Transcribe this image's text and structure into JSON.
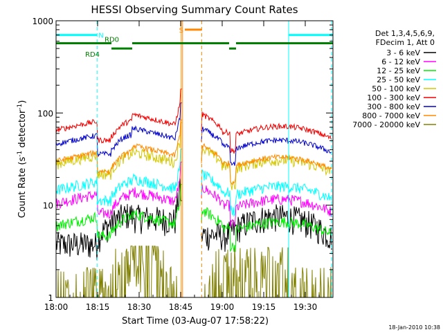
{
  "chart_data": {
    "type": "line",
    "title": "HESSI Observing Summary Count Rates",
    "xlabel": "Start Time (03-Aug-07 17:58:22)",
    "ylabel_prefix": "Count Rate (s",
    "ylabel_sup1": "-1",
    "ylabel_mid": " detector",
    "ylabel_sup2": "-1",
    "ylabel_suffix": ")",
    "y_scale": "log",
    "ylim": [
      1,
      1000
    ],
    "xlim_minutes": [
      0,
      100
    ],
    "x_ticks": [
      {
        "t": 0,
        "label": "18:00"
      },
      {
        "t": 15,
        "label": "18:15"
      },
      {
        "t": 30,
        "label": "18:30"
      },
      {
        "t": 45,
        "label": "18:45"
      },
      {
        "t": 60,
        "label": "19:00"
      },
      {
        "t": 75,
        "label": "19:15"
      },
      {
        "t": 90,
        "label": "19:30"
      }
    ],
    "y_ticks": [
      {
        "v": 1,
        "label": "1"
      },
      {
        "v": 10,
        "label": "10"
      },
      {
        "v": 100,
        "label": "100"
      },
      {
        "v": 1000,
        "label": "1000"
      }
    ],
    "legend_header": [
      "Det 1,3,4,5,6,9,",
      "FDecim 1, Att 0"
    ],
    "legend_position": "right",
    "series": [
      {
        "name": "3 - 6 keV",
        "color": "#000000",
        "base": 4.0,
        "kind": "low"
      },
      {
        "name": "6 - 12 keV",
        "color": "#ff00ff",
        "base": 10.5,
        "kind": "mid"
      },
      {
        "name": "12 - 25 keV",
        "color": "#00ee00",
        "base": 6.0,
        "kind": "mid"
      },
      {
        "name": "25 - 50 keV",
        "color": "#00ffff",
        "base": 14.5,
        "kind": "mid"
      },
      {
        "name": "50 - 100 keV",
        "color": "#d4c800",
        "base": 28.0,
        "kind": "mid"
      },
      {
        "name": "100 - 300 keV",
        "color": "#ee0000",
        "base": 65.0,
        "kind": "high"
      },
      {
        "name": "300 - 800 keV",
        "color": "#0000cc",
        "base": 46.0,
        "kind": "high"
      },
      {
        "name": "800 - 7000 keV",
        "color": "#ff8800",
        "base": 30.0,
        "kind": "high"
      },
      {
        "name": "7000 - 20000 keV",
        "color": "#808000",
        "base": 1.6,
        "kind": "veryhigh"
      }
    ],
    "flags": [
      {
        "label": "N",
        "color": "#00ffff",
        "segments": [
          [
            0,
            14.8
          ],
          [
            84,
            100
          ]
        ],
        "level": 700
      },
      {
        "label": "S",
        "color": "#ff8800",
        "segments": [
          [
            46.5,
            52.5
          ]
        ],
        "level": 800
      },
      {
        "label": "RD0",
        "color": "#008000",
        "segments": [
          [
            0,
            20
          ],
          [
            27.5,
            62.5
          ],
          [
            65,
            100
          ]
        ],
        "level": 570
      },
      {
        "label": "RD4",
        "color": "#008000",
        "segments": [
          [
            20,
            27.5
          ]
        ],
        "level": 500
      },
      {
        "label": "",
        "color": "#008000",
        "segments": [
          [
            62.5,
            65
          ]
        ],
        "level": 500
      }
    ],
    "saa_gaps": [
      [
        45.2,
        52.6
      ]
    ],
    "night_lines": [
      {
        "t": 0,
        "style": "solid"
      },
      {
        "t": 14.8,
        "style": "dashed"
      },
      {
        "t": 84,
        "style": "solid"
      },
      {
        "t": 99.5,
        "style": "dashed"
      }
    ],
    "saa_lines": [
      {
        "t": 45.2,
        "style": "solid"
      },
      {
        "t": 52.6,
        "style": "dashed"
      }
    ]
  },
  "timestamp": "18-Jan-2010 10:38"
}
